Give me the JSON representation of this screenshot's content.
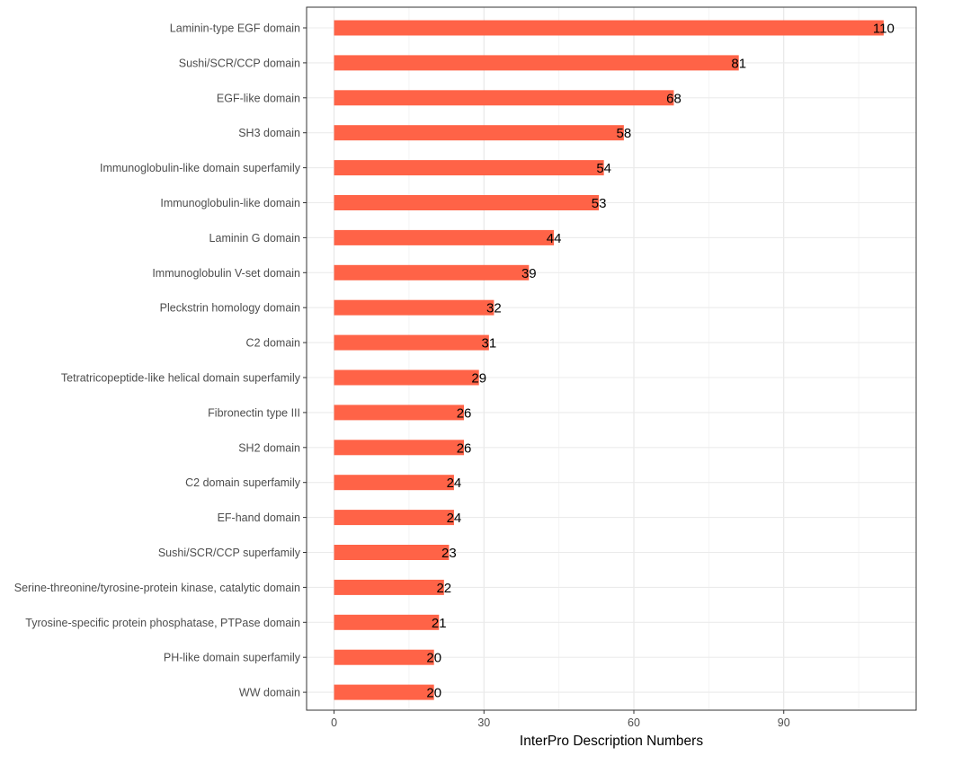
{
  "chart_data": {
    "type": "bar",
    "orientation": "horizontal",
    "categories": [
      "Laminin-type EGF domain",
      "Sushi/SCR/CCP domain",
      "EGF-like domain",
      "SH3 domain",
      "Immunoglobulin-like domain superfamily",
      "Immunoglobulin-like domain",
      "Laminin G domain",
      "Immunoglobulin V-set domain",
      "Pleckstrin homology domain",
      "C2 domain",
      "Tetratricopeptide-like helical domain superfamily",
      "Fibronectin type III",
      "SH2 domain",
      "C2 domain superfamily",
      "EF-hand domain",
      "Sushi/SCR/CCP superfamily",
      "Serine-threonine/tyrosine-protein kinase, catalytic domain",
      "Tyrosine-specific protein phosphatase, PTPase domain",
      "PH-like domain superfamily",
      "WW domain"
    ],
    "values": [
      110,
      81,
      68,
      58,
      54,
      53,
      44,
      39,
      32,
      31,
      29,
      26,
      26,
      24,
      24,
      23,
      22,
      21,
      20,
      20
    ],
    "value_labels": [
      "110",
      "81",
      "68",
      "58",
      "54",
      "53",
      "44",
      "39",
      "32",
      "31",
      "29",
      "26",
      "26",
      "24",
      "24",
      "23",
      "22",
      "21",
      "20",
      "20"
    ],
    "xlabel": "InterPro Description Numbers",
    "ylabel": "",
    "xlim": [
      -5.5,
      116.5
    ],
    "x_ticks": [
      0,
      30,
      60,
      90
    ],
    "x_tick_labels": [
      "0",
      "30",
      "60",
      "90"
    ],
    "grid": true,
    "bar_color": "#FF6347"
  }
}
